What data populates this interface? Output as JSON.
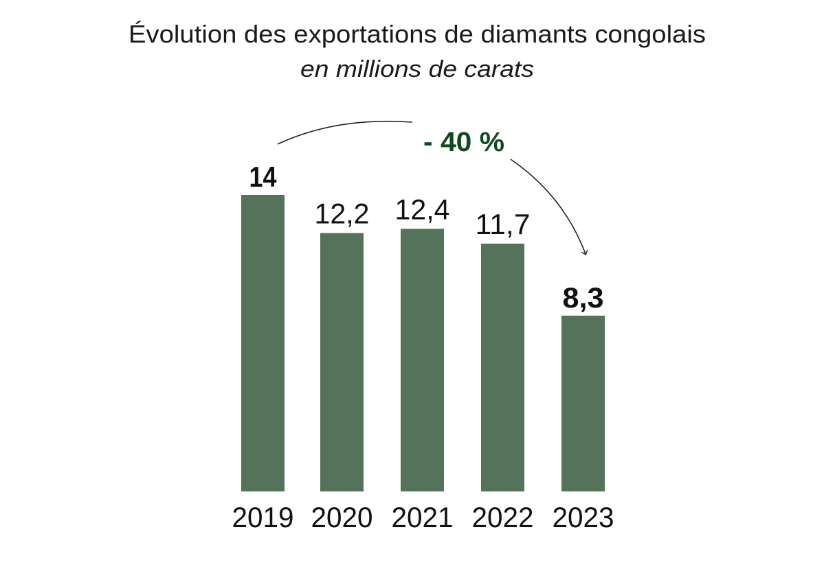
{
  "chart_data": {
    "type": "bar",
    "title": "Évolution des exportations de diamants congolais",
    "subtitle": "en millions de carats",
    "categories": [
      "2019",
      "2020",
      "2021",
      "2022",
      "2023"
    ],
    "values": [
      14,
      12.2,
      12.4,
      11.7,
      8.3
    ],
    "value_labels": [
      "14",
      "12,2",
      "12,4",
      "11,7",
      "8,3"
    ],
    "highlighted": [
      "2019",
      "2023"
    ],
    "annotation": {
      "text": "- 40 %",
      "from": "2019",
      "to": "2023"
    },
    "xlabel": "",
    "ylabel": "",
    "ylim": [
      0,
      14
    ],
    "grid": false,
    "legend": "none",
    "colors": {
      "bar": "#54735a",
      "highlight_label": "#54735a",
      "annotation": "#0f4a1f",
      "text": "#111111"
    }
  }
}
